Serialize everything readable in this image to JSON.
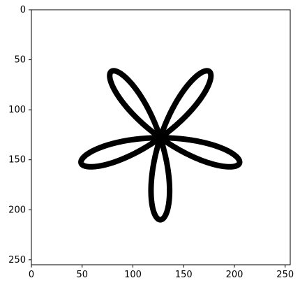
{
  "chart_data": {
    "type": "image",
    "plot": "binary image of a five-petal rose curve outline",
    "curve": {
      "equation": "rose curve, 5 petals",
      "center": [
        127,
        128
      ],
      "petal_length": 82,
      "petals": 5,
      "orientation": "one petal pointing down toward larger y; image y-axis increases downward"
    },
    "xlim": [
      0,
      255
    ],
    "ylim": [
      255,
      0
    ],
    "x_ticks": [
      0,
      50,
      100,
      150,
      200,
      250
    ],
    "y_ticks": [
      0,
      50,
      100,
      150,
      200,
      250
    ],
    "x_tick_labels": [
      "0",
      "50",
      "100",
      "150",
      "200",
      "250"
    ],
    "y_tick_labels": [
      "0",
      "50",
      "100",
      "150",
      "200",
      "250"
    ],
    "title": "",
    "xlabel": "",
    "ylabel": "",
    "colors": {
      "curve": "#000000",
      "background": "#ffffff",
      "axes": "#000000"
    },
    "grid": false
  }
}
